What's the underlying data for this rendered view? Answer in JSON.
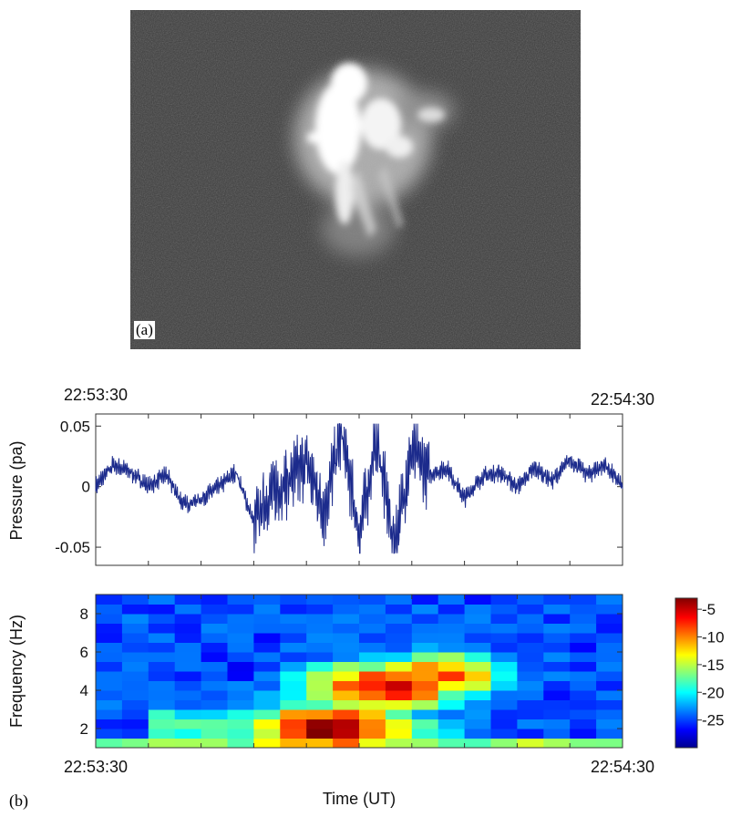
{
  "panel_a": {
    "label": "(a)"
  },
  "panel_b": {
    "label": "(b)",
    "time_start": "22:53:30",
    "time_end": "22:54:30",
    "xlabel": "Time (UT)"
  },
  "chart_data": [
    {
      "type": "line",
      "ylabel": "Pressure (pa)",
      "ylim": [
        -0.065,
        0.06
      ],
      "yticks": [
        {
          "v": 0.05,
          "label": "0.05"
        },
        {
          "v": 0,
          "label": "0"
        },
        {
          "v": -0.05,
          "label": "-0.05"
        }
      ],
      "color": "#1c2b8c",
      "x_seconds": [
        0,
        2,
        4,
        6,
        8,
        10,
        12,
        14,
        16,
        18,
        20,
        22,
        24,
        26,
        28,
        30,
        32,
        34,
        36,
        38,
        40,
        42,
        44,
        46,
        48,
        50,
        52,
        54,
        56,
        58,
        60
      ],
      "series": [
        {
          "values": [
            0.0,
            0.018,
            0.012,
            0.0,
            0.01,
            -0.015,
            -0.01,
            0.0,
            0.012,
            -0.03,
            -0.005,
            0.005,
            0.02,
            -0.02,
            0.045,
            -0.04,
            0.04,
            -0.05,
            0.03,
            0.01,
            0.015,
            -0.01,
            0.008,
            0.012,
            0.0,
            0.015,
            0.005,
            0.022,
            0.01,
            0.018,
            0.0
          ]
        }
      ]
    },
    {
      "type": "heatmap",
      "ylabel": "Frequency (Hz)",
      "ylim": [
        1,
        9
      ],
      "yticks": [
        {
          "v": 2,
          "label": "2"
        },
        {
          "v": 4,
          "label": "4"
        },
        {
          "v": 6,
          "label": "6"
        },
        {
          "v": 8,
          "label": "8"
        }
      ],
      "time_bins": 20,
      "freq_bins": 16,
      "colorbar": {
        "min": -30,
        "max": -3,
        "ticks": [
          -5,
          -10,
          -15,
          -20,
          -25
        ]
      },
      "peak_centres": [
        {
          "t": 8.5,
          "f": 2.0,
          "level": -5
        },
        {
          "t": 10.5,
          "f": 4.2,
          "level": -7
        },
        {
          "t": 12.5,
          "f": 4.8,
          "level": -10
        }
      ]
    }
  ]
}
